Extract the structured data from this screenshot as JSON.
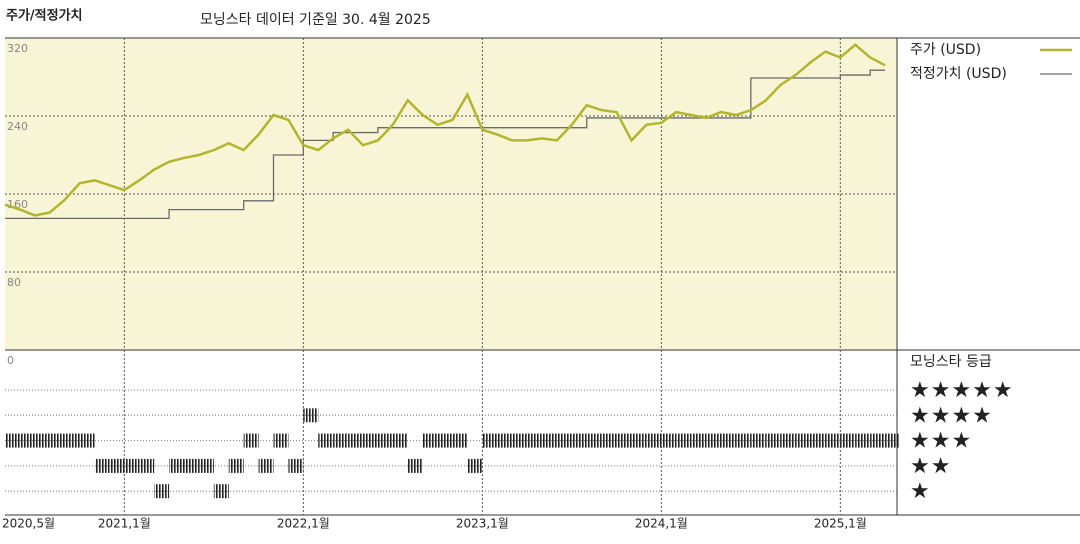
{
  "chart_data": {
    "type": "line",
    "title": "주가/적정가치",
    "subtitle": "모닝스타 데이터 기준일 30. 4월 2025",
    "x": [
      "2020-05",
      "2020-06",
      "2020-07",
      "2020-08",
      "2020-09",
      "2020-10",
      "2020-11",
      "2020-12",
      "2021-01",
      "2021-02",
      "2021-03",
      "2021-04",
      "2021-05",
      "2021-06",
      "2021-07",
      "2021-08",
      "2021-09",
      "2021-10",
      "2021-11",
      "2021-12",
      "2022-01",
      "2022-02",
      "2022-03",
      "2022-04",
      "2022-05",
      "2022-06",
      "2022-07",
      "2022-08",
      "2022-09",
      "2022-10",
      "2022-11",
      "2022-12",
      "2023-01",
      "2023-02",
      "2023-03",
      "2023-04",
      "2023-05",
      "2023-06",
      "2023-07",
      "2023-08",
      "2023-09",
      "2023-10",
      "2023-11",
      "2023-12",
      "2024-01",
      "2024-02",
      "2024-03",
      "2024-04",
      "2024-05",
      "2024-06",
      "2024-07",
      "2024-08",
      "2024-09",
      "2024-10",
      "2024-11",
      "2024-12",
      "2025-01",
      "2025-02",
      "2025-03",
      "2025-04"
    ],
    "series": [
      {
        "name": "주가 (USD)",
        "color": "#b3b52a",
        "width": 2.5,
        "step": false,
        "values": [
          149,
          144,
          138,
          141,
          154,
          171,
          174,
          169,
          164,
          174,
          185,
          193,
          197,
          200,
          205,
          212,
          205,
          221,
          241,
          236,
          210,
          205,
          217,
          226,
          210,
          215,
          231,
          256,
          241,
          231,
          236,
          262,
          226,
          221,
          215,
          215,
          217,
          215,
          231,
          251,
          246,
          244,
          215,
          231,
          233,
          244,
          241,
          238,
          244,
          241,
          246,
          256,
          272,
          282,
          295,
          306,
          300,
          313,
          300,
          292
        ]
      },
      {
        "name": "적정가치 (USD)",
        "color": "#6b6b6b",
        "width": 1.3,
        "step": true,
        "values": [
          135,
          135,
          135,
          135,
          135,
          135,
          135,
          135,
          135,
          135,
          135,
          144,
          144,
          144,
          144,
          144,
          153,
          153,
          200,
          200,
          215,
          215,
          223,
          223,
          223,
          228,
          228,
          228,
          228,
          228,
          228,
          228,
          228,
          228,
          228,
          228,
          228,
          228,
          228,
          238,
          238,
          238,
          238,
          238,
          238,
          238,
          238,
          238,
          238,
          238,
          279,
          279,
          279,
          279,
          279,
          279,
          282,
          282,
          287,
          287
        ]
      }
    ],
    "ylim": [
      0,
      320
    ],
    "yticks": [
      0,
      80,
      160,
      240,
      320
    ],
    "xticks": [
      {
        "value": "2020-05",
        "label": "2020,5월"
      },
      {
        "value": "2021-01",
        "label": "2021,1월"
      },
      {
        "value": "2022-01",
        "label": "2022,1월"
      },
      {
        "value": "2023-01",
        "label": "2023,1월"
      },
      {
        "value": "2024-01",
        "label": "2024,1월"
      },
      {
        "value": "2025-01",
        "label": "2025,1월"
      }
    ],
    "grid": true,
    "rating": {
      "title": "모닝스타 등급",
      "labels": [
        "★★★★★",
        "★★★★",
        "★★★",
        "★★",
        "★"
      ],
      "values": [
        3,
        3,
        3,
        3,
        3,
        3,
        2,
        2,
        2,
        2,
        1,
        2,
        2,
        2,
        1,
        2,
        3,
        2,
        3,
        2,
        4,
        3,
        3,
        3,
        3,
        3,
        3,
        2,
        3,
        3,
        3,
        2,
        3,
        3,
        3,
        3,
        3,
        3,
        3,
        3,
        3,
        3,
        3,
        3,
        3,
        3,
        3,
        3,
        3,
        3,
        3,
        3,
        3,
        3,
        3,
        3,
        3,
        3,
        3,
        3
      ]
    }
  }
}
